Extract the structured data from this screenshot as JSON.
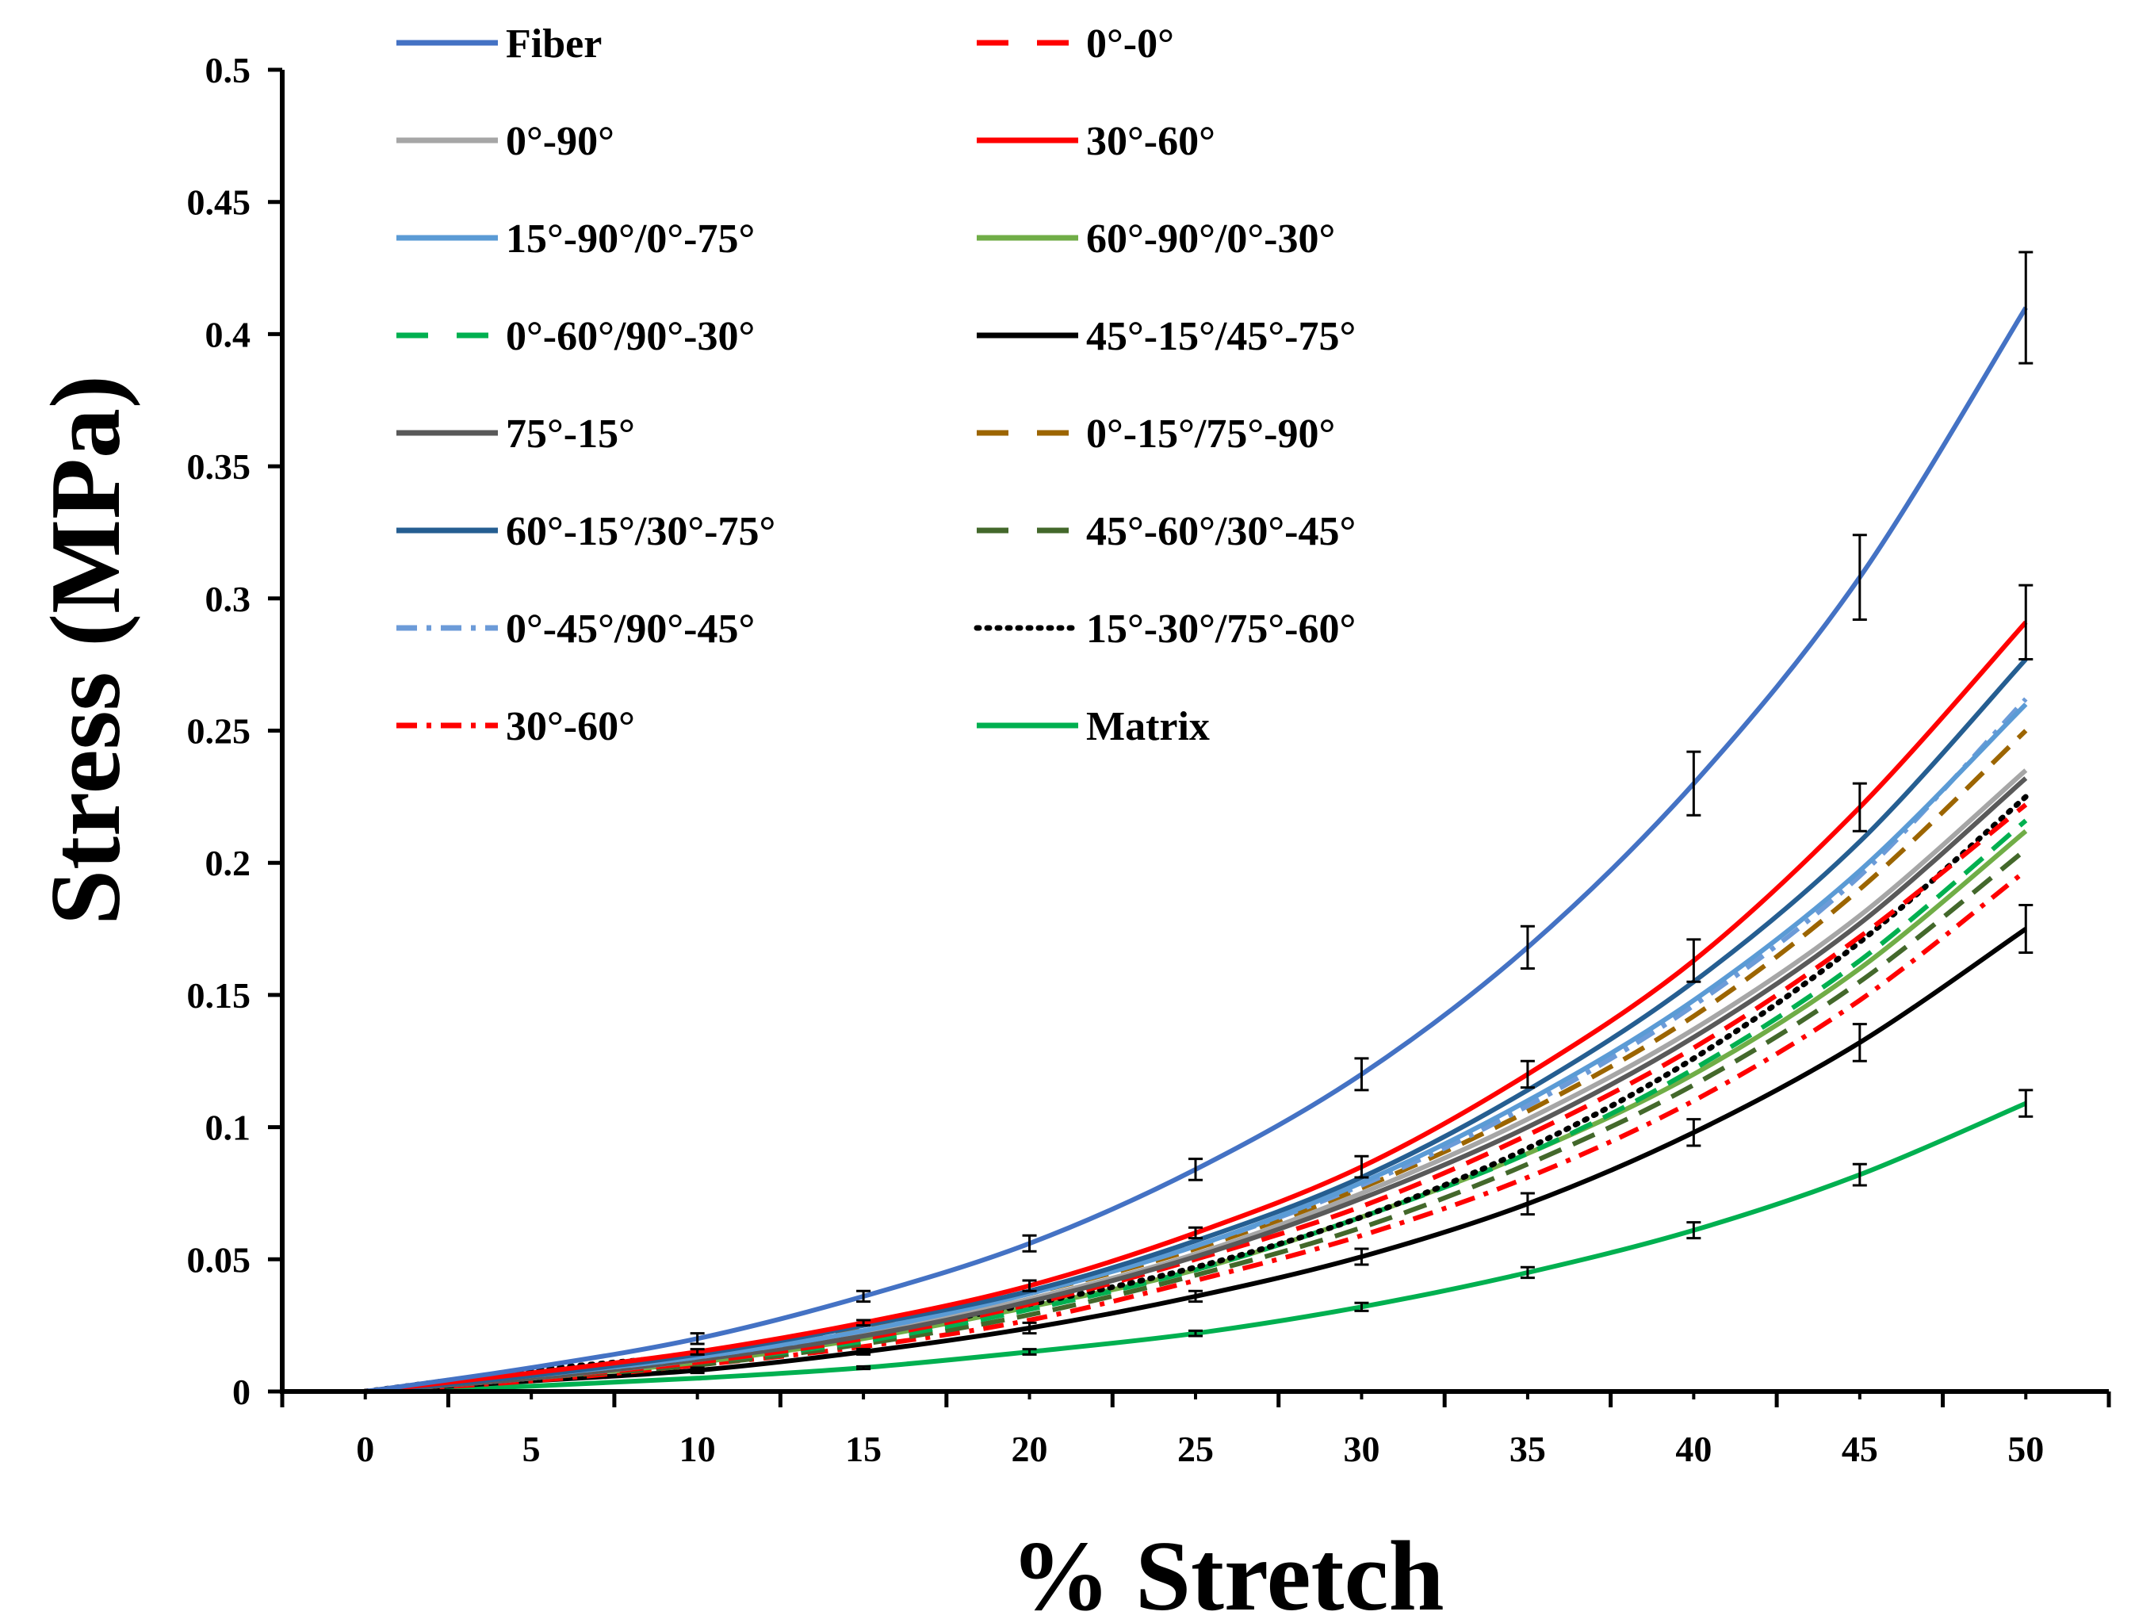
{
  "chart_data": {
    "type": "line",
    "title": "",
    "xlabel": "% Stretch",
    "ylabel": "Stress (MPa)",
    "xlim": [
      -2.5,
      52.5
    ],
    "ylim": [
      0,
      0.5
    ],
    "x": [
      0,
      5,
      10,
      15,
      20,
      25,
      30,
      35,
      40,
      45,
      50
    ],
    "xticks": [
      "0",
      "5",
      "10",
      "15",
      "20",
      "25",
      "30",
      "35",
      "40",
      "45",
      "50"
    ],
    "yticks": [
      "0",
      "0.05",
      "0.1",
      "0.15",
      "0.2",
      "0.25",
      "0.3",
      "0.35",
      "0.4",
      "0.45",
      "0.5"
    ],
    "grid": false,
    "legend_position": "top",
    "series": [
      {
        "name": "Fiber",
        "color": "#4472C4",
        "dash": "solid",
        "values": [
          0,
          0.009,
          0.02,
          0.036,
          0.056,
          0.084,
          0.12,
          0.168,
          0.23,
          0.308,
          0.41
        ],
        "error_bars": [
          0,
          0,
          0.002,
          0.002,
          0.003,
          0.004,
          0.006,
          0.008,
          0.012,
          0.016,
          0.021
        ]
      },
      {
        "name": "0°-0°",
        "color": "#FF0000",
        "dash": "longdash",
        "values": [
          0,
          0.005,
          0.011,
          0.02,
          0.033,
          0.05,
          0.07,
          0.097,
          0.13,
          0.172,
          0.222
        ],
        "error_bars": [
          0,
          0,
          0,
          0,
          0,
          0,
          0,
          0,
          0,
          0,
          0
        ]
      },
      {
        "name": "0°-90°",
        "color": "#A6A6A6",
        "dash": "solid",
        "values": [
          0,
          0.005,
          0.012,
          0.022,
          0.035,
          0.052,
          0.075,
          0.103,
          0.137,
          0.18,
          0.235
        ],
        "error_bars": [
          0,
          0,
          0,
          0,
          0,
          0,
          0,
          0,
          0,
          0,
          0
        ]
      },
      {
        "name": "30°-60°",
        "color": "#FF0000",
        "dash": "solid",
        "values": [
          0,
          0.007,
          0.015,
          0.026,
          0.04,
          0.06,
          0.085,
          0.12,
          0.163,
          0.221,
          0.291
        ],
        "error_bars": [
          0,
          0,
          0.001,
          0.001,
          0.002,
          0.002,
          0.004,
          0.005,
          0.008,
          0.009,
          0.014
        ]
      },
      {
        "name": "15°-90°/0°-75°",
        "color": "#5B9BD5",
        "dash": "solid",
        "values": [
          0,
          0.006,
          0.013,
          0.023,
          0.037,
          0.055,
          0.079,
          0.11,
          0.148,
          0.197,
          0.26
        ],
        "error_bars": [
          0,
          0,
          0,
          0,
          0,
          0,
          0,
          0,
          0,
          0,
          0
        ]
      },
      {
        "name": "60°-90°/0°-30°",
        "color": "#70AD47",
        "dash": "solid",
        "values": [
          0,
          0.005,
          0.011,
          0.02,
          0.032,
          0.046,
          0.066,
          0.09,
          0.12,
          0.16,
          0.212
        ],
        "error_bars": [
          0,
          0,
          0,
          0,
          0,
          0,
          0,
          0,
          0,
          0,
          0
        ]
      },
      {
        "name": "0°-60°/90°-30°",
        "color": "#00B050",
        "dash": "longdash",
        "values": [
          0,
          0.005,
          0.011,
          0.019,
          0.031,
          0.046,
          0.066,
          0.09,
          0.122,
          0.163,
          0.216
        ],
        "error_bars": [
          0,
          0,
          0,
          0,
          0,
          0,
          0,
          0,
          0,
          0,
          0
        ]
      },
      {
        "name": "45°-15°/45°-75°",
        "color": "#000000",
        "dash": "solid",
        "values": [
          0,
          0.004,
          0.008,
          0.015,
          0.024,
          0.036,
          0.051,
          0.071,
          0.098,
          0.132,
          0.175
        ],
        "error_bars": [
          0,
          0,
          0.001,
          0.001,
          0.002,
          0.002,
          0.003,
          0.004,
          0.005,
          0.007,
          0.009
        ]
      },
      {
        "name": "75°-15°",
        "color": "#595959",
        "dash": "solid",
        "values": [
          0,
          0.005,
          0.012,
          0.021,
          0.034,
          0.051,
          0.073,
          0.1,
          0.134,
          0.177,
          0.232
        ],
        "error_bars": [
          0,
          0,
          0,
          0,
          0,
          0,
          0,
          0,
          0,
          0,
          0
        ]
      },
      {
        "name": "0°-15°/75°-90°",
        "color": "#9C6500",
        "dash": "longdash",
        "values": [
          0,
          0.006,
          0.014,
          0.024,
          0.037,
          0.054,
          0.077,
          0.106,
          0.142,
          0.19,
          0.25
        ],
        "error_bars": [
          0,
          0,
          0,
          0,
          0,
          0,
          0,
          0,
          0,
          0,
          0
        ]
      },
      {
        "name": "60°-15°/30°-75°",
        "color": "#255E91",
        "dash": "solid",
        "values": [
          0,
          0.006,
          0.014,
          0.025,
          0.038,
          0.057,
          0.081,
          0.114,
          0.155,
          0.208,
          0.277
        ],
        "error_bars": [
          0,
          0,
          0,
          0,
          0,
          0,
          0,
          0,
          0,
          0,
          0
        ]
      },
      {
        "name": "45°-60°/30°-45°",
        "color": "#43682B",
        "dash": "longdash",
        "values": [
          0,
          0.005,
          0.01,
          0.018,
          0.029,
          0.044,
          0.062,
          0.086,
          0.116,
          0.155,
          0.205
        ],
        "error_bars": [
          0,
          0,
          0,
          0,
          0,
          0,
          0,
          0,
          0,
          0,
          0
        ]
      },
      {
        "name": "0°-45°/90°-45°",
        "color": "#6C9BD8",
        "dash": "dashdot",
        "values": [
          0,
          0.006,
          0.013,
          0.023,
          0.037,
          0.055,
          0.078,
          0.108,
          0.146,
          0.195,
          0.262
        ],
        "error_bars": [
          0,
          0,
          0,
          0,
          0,
          0,
          0,
          0,
          0,
          0,
          0
        ]
      },
      {
        "name": "15°-30°/75°-60°",
        "color": "#000000",
        "dash": "dotted",
        "values": [
          0,
          0.008,
          0.014,
          0.022,
          0.033,
          0.047,
          0.066,
          0.092,
          0.126,
          0.17,
          0.225
        ],
        "error_bars": [
          0,
          0,
          0,
          0,
          0,
          0,
          0,
          0,
          0,
          0,
          0
        ]
      },
      {
        "name": "30°-60°",
        "color": "#FF0000",
        "dash": "dashdot",
        "values": [
          0,
          0.004,
          0.01,
          0.017,
          0.027,
          0.042,
          0.059,
          0.081,
          0.11,
          0.148,
          0.197
        ],
        "error_bars": [
          0,
          0,
          0,
          0,
          0,
          0,
          0,
          0,
          0,
          0,
          0
        ]
      },
      {
        "name": "Matrix",
        "color": "#00B050",
        "dash": "solid",
        "values": [
          0,
          0.002,
          0.005,
          0.009,
          0.015,
          0.022,
          0.032,
          0.045,
          0.061,
          0.082,
          0.109
        ],
        "error_bars": [
          0,
          0,
          0,
          0.0005,
          0.001,
          0.001,
          0.0015,
          0.002,
          0.003,
          0.004,
          0.005
        ]
      }
    ]
  }
}
